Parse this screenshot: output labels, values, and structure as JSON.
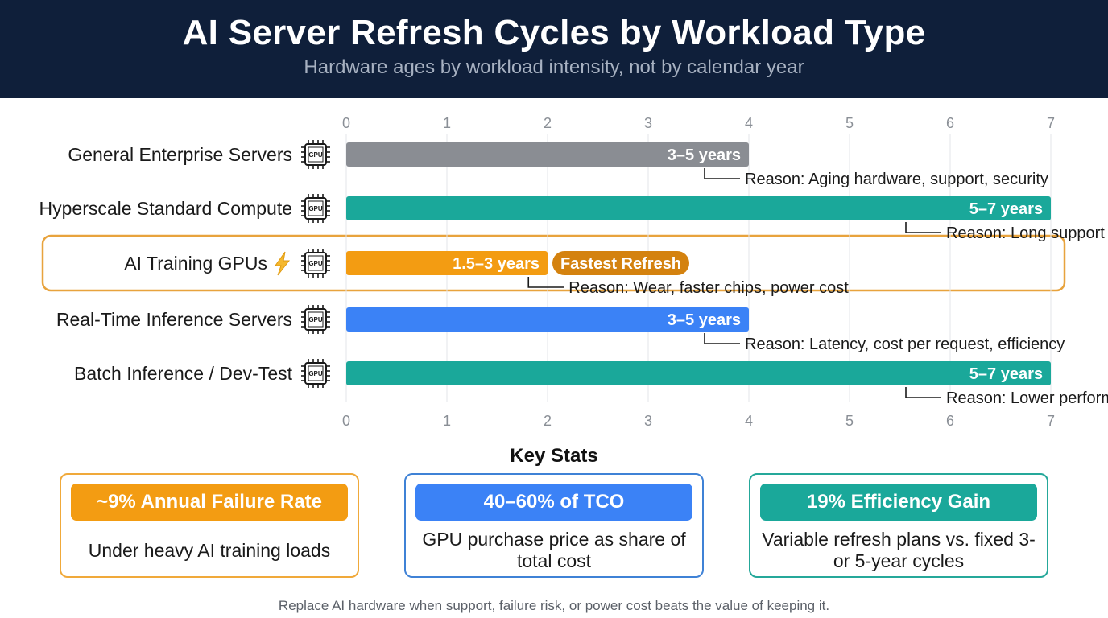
{
  "header": {
    "title": "AI Server Refresh Cycles by Workload Type",
    "subtitle": "Hardware ages by workload intensity, not by calendar year"
  },
  "chart_data": {
    "type": "bar",
    "orientation": "horizontal",
    "xlim": [
      0,
      7
    ],
    "xticks": [
      0,
      1,
      2,
      3,
      4,
      5,
      6,
      7
    ],
    "grid": true,
    "categories": [
      "General Enterprise Servers",
      "Hyperscale Standard Compute",
      "AI Training GPUs",
      "Real-Time Inference Servers",
      "Batch Inference / Dev-Test"
    ],
    "values": [
      4,
      7,
      2,
      4,
      7
    ],
    "ranges": [
      [
        3,
        5
      ],
      [
        5,
        7
      ],
      [
        1.5,
        3
      ],
      [
        3,
        5
      ],
      [
        5,
        7
      ]
    ],
    "bar_labels": [
      "3–5 years",
      "5–7 years",
      "1.5–3 years",
      "3–5 years",
      "5–7 years"
    ],
    "reasons": [
      "Reason: Aging hardware, support, security",
      "Reason: Long support use, staged reuse",
      "Reason: Wear, faster chips, power cost",
      "Reason: Latency, cost per request, efficiency",
      "Reason: Lower performance pressure"
    ],
    "colors": [
      "#8a8d93",
      "#1aa89a",
      "#f39c12",
      "#3b82f6",
      "#1aa89a"
    ],
    "highlight": {
      "category": "AI Training GPUs",
      "badge": "Fastest Refresh",
      "badge_color": "#d4820f",
      "border_color": "#e8a33d",
      "icon": "lightning-icon"
    },
    "icon": "gpu-chip-icon",
    "icon_text": "GPU"
  },
  "stats": {
    "title": "Key Stats",
    "cards": [
      {
        "headline": "~9% Annual Failure Rate",
        "desc": "Under heavy AI training loads",
        "color": "#f39c12",
        "border": "#f0a93a"
      },
      {
        "headline": "40–60% of TCO",
        "desc": "GPU purchase price as share of total cost",
        "color": "#3b82f6",
        "border": "#3f82d6"
      },
      {
        "headline": "19% Efficiency Gain",
        "desc": "Variable refresh plans vs. fixed 3- or 5-year cycles",
        "color": "#1aa89a",
        "border": "#25a89a"
      }
    ]
  },
  "footer": "Replace AI hardware when support, failure risk, or power cost beats the value of keeping it."
}
